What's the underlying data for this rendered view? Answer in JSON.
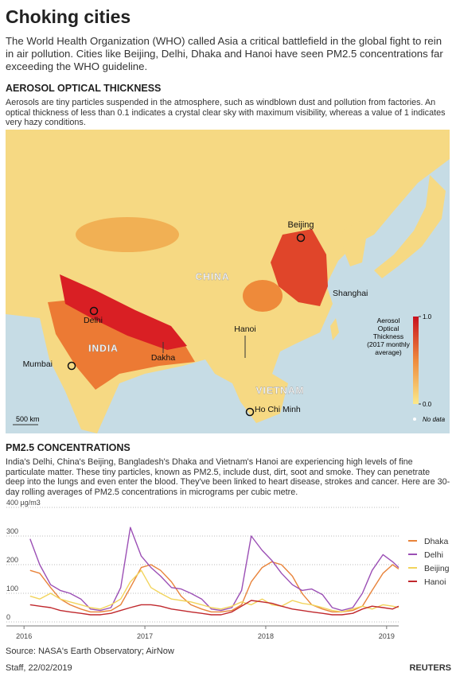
{
  "header": {
    "title": "Choking cities",
    "intro": "The World Health Organization (WHO) called Asia a critical battlefield in the global fight to rein in air pollution. Cities like Beijing, Delhi, Dhaka and Hanoi have seen PM2.5 concentrations far exceeding the WHO guideline."
  },
  "aerosol": {
    "heading": "AEROSOL OPTICAL THICKNESS",
    "description": "Aerosols are tiny particles suspended in the atmosphere, such as windblown dust and pollution from factories. An optical thickness of less than 0.1 indicates a crystal clear sky with maximum visibility, whereas a value of 1 indicates very hazy conditions.",
    "map": {
      "labels": [
        "Beijing",
        "CHINA",
        "Shanghai",
        "Delhi",
        "INDIA",
        "Hanoi",
        "Dakha",
        "Mumbai",
        "VIETNAM",
        "Ho Chi Minh"
      ],
      "scale": "500 km",
      "legend": {
        "title": [
          "Aerosol",
          "Optical",
          "Thickness",
          "(2017 monthly",
          "average)"
        ],
        "ticks": [
          {
            "value": 1,
            "label": "1.0"
          },
          {
            "value": 0,
            "label": "0.0"
          }
        ],
        "range": [
          0,
          1
        ],
        "no_data": "No data"
      }
    }
  },
  "pm25": {
    "heading": "PM2.5 CONCENTRATIONS",
    "description": "India's Delhi, China's Beijing, Bangladesh's Dhaka and Vietnam's Hanoi are experiencing high levels of fine particulate matter. These tiny particles, known as PM2.5, include dust, dirt, soot and smoke. They can penetrate deep into the lungs and even enter the blood. They've been linked to heart disease, strokes and cancer. Here are 30-day rolling averages of PM2.5 concentrations in micrograms per cubic metre."
  },
  "chart_data": {
    "type": "line",
    "x": [
      2016.05,
      2016.13,
      2016.22,
      2016.3,
      2016.38,
      2016.47,
      2016.55,
      2016.63,
      2016.72,
      2016.8,
      2016.88,
      2016.97,
      2017.05,
      2017.13,
      2017.22,
      2017.3,
      2017.38,
      2017.47,
      2017.55,
      2017.63,
      2017.72,
      2017.8,
      2017.88,
      2017.97,
      2018.05,
      2018.13,
      2018.22,
      2018.3,
      2018.38,
      2018.47,
      2018.55,
      2018.63,
      2018.72,
      2018.8,
      2018.88,
      2018.97,
      2019.05,
      2019.1
    ],
    "series": [
      {
        "name": "Dhaka",
        "color": "#e8833a",
        "values": [
          180,
          170,
          120,
          80,
          60,
          45,
          35,
          35,
          40,
          60,
          120,
          190,
          200,
          180,
          140,
          90,
          60,
          45,
          35,
          35,
          40,
          60,
          140,
          190,
          210,
          200,
          160,
          100,
          60,
          45,
          35,
          35,
          40,
          55,
          110,
          170,
          200,
          185
        ]
      },
      {
        "name": "Delhi",
        "color": "#9b4fb5",
        "values": [
          290,
          200,
          130,
          110,
          100,
          80,
          45,
          40,
          50,
          120,
          330,
          230,
          190,
          160,
          120,
          115,
          100,
          80,
          45,
          40,
          50,
          110,
          300,
          250,
          215,
          170,
          130,
          110,
          115,
          95,
          50,
          40,
          50,
          100,
          180,
          235,
          210,
          190
        ]
      },
      {
        "name": "Beijing",
        "color": "#f2d45c",
        "values": [
          90,
          80,
          100,
          80,
          70,
          60,
          50,
          45,
          60,
          80,
          140,
          180,
          120,
          100,
          80,
          75,
          70,
          60,
          50,
          45,
          55,
          70,
          60,
          80,
          60,
          55,
          75,
          65,
          60,
          50,
          40,
          35,
          45,
          55,
          45,
          60,
          55,
          50
        ]
      },
      {
        "name": "Hanoi",
        "color": "#c0282d",
        "values": [
          60,
          55,
          50,
          40,
          35,
          30,
          25,
          25,
          30,
          40,
          50,
          60,
          60,
          55,
          45,
          40,
          35,
          30,
          25,
          25,
          35,
          55,
          75,
          70,
          65,
          55,
          45,
          40,
          35,
          30,
          25,
          25,
          30,
          45,
          55,
          50,
          45,
          55
        ]
      }
    ],
    "xlim": [
      2015.9,
      2019.1
    ],
    "xticks": [
      2016,
      2017,
      2018,
      2019
    ],
    "ylim": [
      0,
      400
    ],
    "yticks": [
      0,
      100,
      200,
      300,
      {
        "value": 400,
        "label": "400 µg/m3"
      }
    ],
    "grid": true
  },
  "footer": {
    "source": "Source: NASA's Earth Observatory; AirNow",
    "credit": "Staff,  22/02/2019",
    "logo": "REUTERS"
  }
}
